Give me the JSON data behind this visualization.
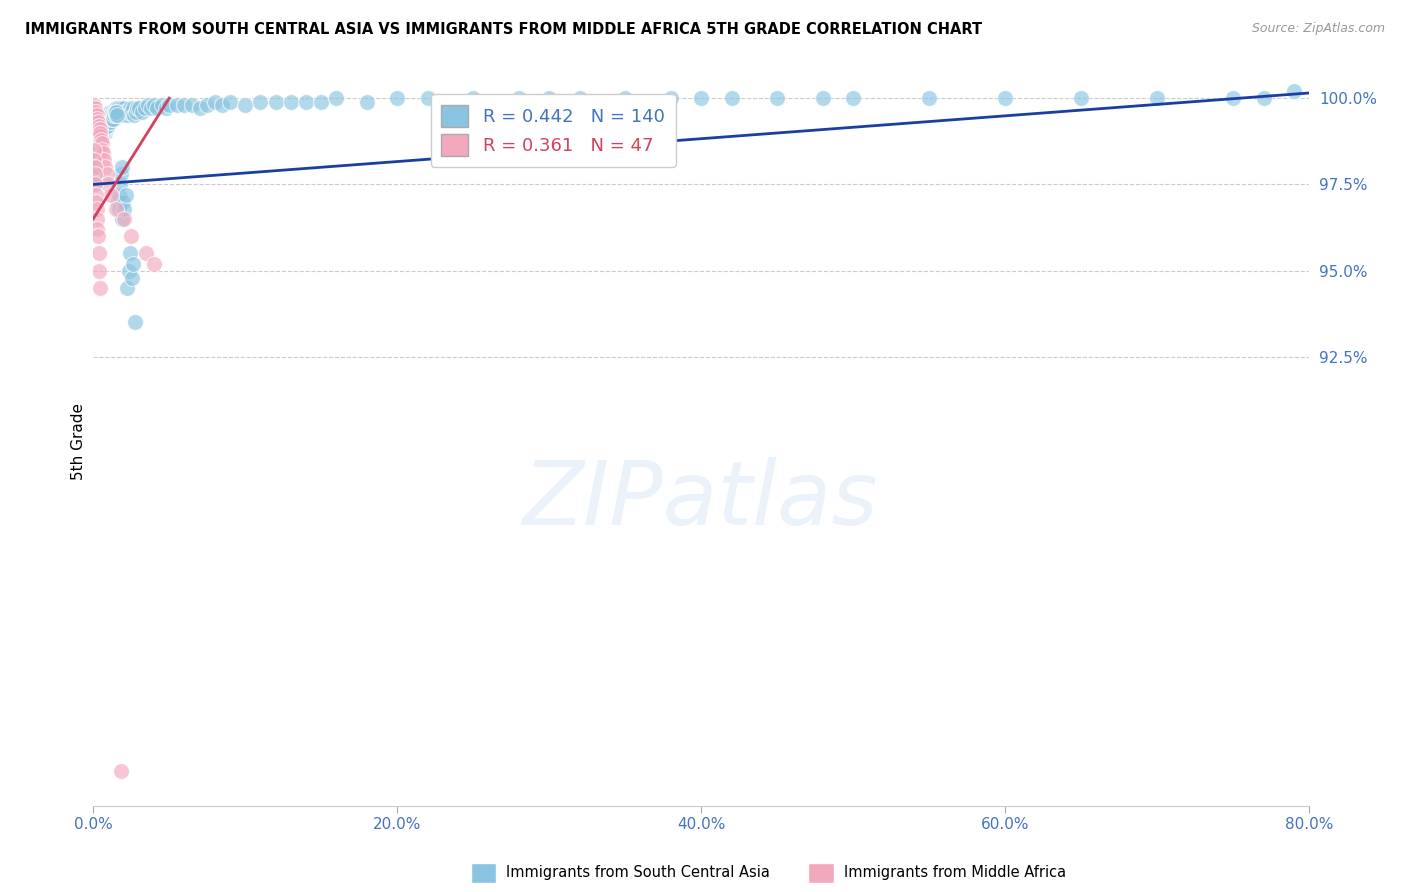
{
  "title": "IMMIGRANTS FROM SOUTH CENTRAL ASIA VS IMMIGRANTS FROM MIDDLE AFRICA 5TH GRADE CORRELATION CHART",
  "source": "Source: ZipAtlas.com",
  "ylabel": "5th Grade",
  "watermark": "ZIPatlas",
  "legend_blue_r": "0.442",
  "legend_blue_n": "140",
  "legend_pink_r": "0.361",
  "legend_pink_n": "47",
  "blue_color": "#89c4e1",
  "pink_color": "#f4a8be",
  "trendline_blue": "#1a3fa0",
  "trendline_pink": "#d44060",
  "axis_color": "#4472c4",
  "grid_color": "#cccccc",
  "xmin": 0.0,
  "xmax": 80.0,
  "ymin": 79.5,
  "ymax": 100.6,
  "yticks": [
    92.5,
    95.0,
    97.5,
    100.0
  ],
  "xtick_positions": [
    0.0,
    20.0,
    40.0,
    60.0,
    80.0
  ],
  "blue_trendline": [
    0.0,
    80.0,
    97.5,
    100.15
  ],
  "pink_trendline": [
    0.0,
    5.0,
    96.5,
    100.0
  ],
  "blue_scatter_x": [
    0.1,
    0.15,
    0.2,
    0.25,
    0.3,
    0.35,
    0.4,
    0.45,
    0.5,
    0.55,
    0.6,
    0.65,
    0.7,
    0.75,
    0.8,
    0.85,
    0.9,
    0.95,
    1.0,
    1.05,
    1.1,
    1.15,
    1.2,
    1.25,
    1.3,
    1.35,
    1.4,
    1.45,
    1.5,
    1.55,
    1.6,
    1.65,
    1.7,
    1.75,
    1.8,
    1.85,
    1.9,
    1.95,
    2.0,
    2.1,
    2.2,
    2.3,
    2.4,
    2.5,
    2.6,
    2.7,
    2.8,
    2.9,
    3.0,
    3.2,
    3.4,
    3.6,
    3.8,
    4.0,
    4.2,
    4.5,
    4.8,
    5.0,
    5.5,
    6.0,
    6.5,
    7.0,
    7.5,
    8.0,
    8.5,
    9.0,
    10.0,
    11.0,
    12.0,
    13.0,
    14.0,
    15.0,
    16.0,
    18.0,
    20.0,
    22.0,
    25.0,
    28.0,
    30.0,
    32.0,
    35.0,
    38.0,
    40.0,
    42.0,
    45.0,
    48.0,
    50.0,
    55.0,
    60.0,
    65.0,
    70.0,
    75.0,
    77.0,
    79.0,
    0.12,
    0.18,
    0.22,
    0.28,
    0.32,
    0.38,
    0.42,
    0.48,
    0.52,
    0.58,
    0.62,
    0.68,
    0.72,
    0.78,
    0.82,
    0.88,
    0.92,
    0.98,
    1.02,
    1.08,
    1.12,
    1.18,
    1.22,
    1.28,
    1.32,
    1.38,
    1.42,
    1.48,
    1.52,
    1.58,
    1.62,
    1.68,
    1.72,
    1.78,
    1.82,
    1.88,
    1.92,
    1.98,
    2.05,
    2.15,
    2.25,
    2.35,
    2.45,
    2.55,
    2.65,
    2.75
  ],
  "blue_scatter_y": [
    98.2,
    98.5,
    98.8,
    99.0,
    99.1,
    98.7,
    99.2,
    98.9,
    99.3,
    99.0,
    99.4,
    99.1,
    99.2,
    99.3,
    99.0,
    99.1,
    99.4,
    99.2,
    99.5,
    99.3,
    99.6,
    99.4,
    99.5,
    99.6,
    99.5,
    99.4,
    99.6,
    99.5,
    99.7,
    99.5,
    99.6,
    99.7,
    99.6,
    99.5,
    99.7,
    99.6,
    99.5,
    99.6,
    99.7,
    99.6,
    99.5,
    99.6,
    99.7,
    99.6,
    99.7,
    99.5,
    99.6,
    99.7,
    99.7,
    99.6,
    99.7,
    99.8,
    99.7,
    99.8,
    99.7,
    99.8,
    99.7,
    99.8,
    99.8,
    99.8,
    99.8,
    99.7,
    99.8,
    99.9,
    99.8,
    99.9,
    99.8,
    99.9,
    99.9,
    99.9,
    99.9,
    99.9,
    100.0,
    99.9,
    100.0,
    100.0,
    100.0,
    100.0,
    100.0,
    100.0,
    100.0,
    100.0,
    100.0,
    100.0,
    100.0,
    100.0,
    100.0,
    100.0,
    100.0,
    100.0,
    100.0,
    100.0,
    100.0,
    100.2,
    97.5,
    97.8,
    98.0,
    98.2,
    98.4,
    98.6,
    98.8,
    99.0,
    98.9,
    99.1,
    99.0,
    99.2,
    99.1,
    99.3,
    99.2,
    99.3,
    99.2,
    99.4,
    99.3,
    99.4,
    99.3,
    99.5,
    99.4,
    99.5,
    99.4,
    99.5,
    99.6,
    99.5,
    99.6,
    99.5,
    97.0,
    96.8,
    97.2,
    97.5,
    97.8,
    98.0,
    96.5,
    97.0,
    96.8,
    97.2,
    94.5,
    95.0,
    95.5,
    94.8,
    95.2,
    93.5
  ],
  "pink_scatter_x": [
    0.05,
    0.08,
    0.1,
    0.12,
    0.15,
    0.18,
    0.2,
    0.22,
    0.25,
    0.28,
    0.3,
    0.32,
    0.35,
    0.38,
    0.4,
    0.42,
    0.45,
    0.48,
    0.5,
    0.55,
    0.6,
    0.65,
    0.7,
    0.8,
    0.9,
    1.0,
    1.2,
    1.5,
    2.0,
    2.5,
    3.5,
    4.0,
    0.05,
    0.08,
    0.1,
    0.12,
    0.15,
    0.18,
    0.2,
    0.22,
    0.25,
    0.28,
    0.3,
    0.35,
    0.4,
    0.45,
    1.8
  ],
  "pink_scatter_y": [
    99.7,
    99.8,
    99.6,
    99.7,
    99.5,
    99.6,
    99.4,
    99.5,
    99.3,
    99.4,
    99.2,
    99.3,
    99.1,
    99.2,
    99.0,
    99.1,
    98.9,
    99.0,
    98.8,
    98.7,
    98.5,
    98.4,
    98.2,
    98.0,
    97.8,
    97.5,
    97.2,
    96.8,
    96.5,
    96.0,
    95.5,
    95.2,
    98.5,
    98.2,
    98.0,
    97.8,
    97.5,
    97.2,
    97.0,
    96.8,
    96.5,
    96.2,
    96.0,
    95.5,
    95.0,
    94.5,
    80.5
  ]
}
